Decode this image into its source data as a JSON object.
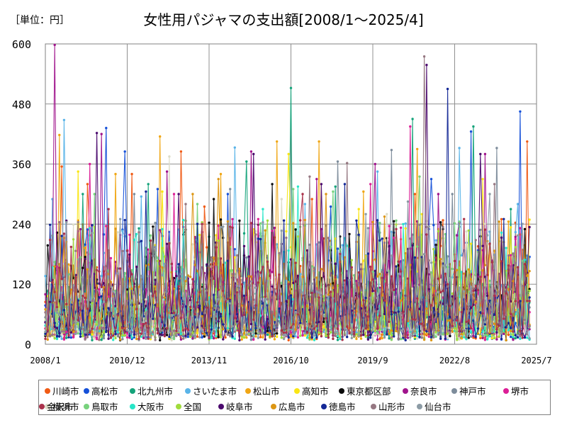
{
  "header": {
    "unit": "［単位：円］",
    "title": "女性用パジャマの支出額[2008/1～2025/4]"
  },
  "chart_data": {
    "type": "line",
    "title": "女性用パジャマの支出額[2008/1～2025/4]",
    "unit": "［単位：円］",
    "xlabel": "",
    "ylabel": "",
    "x_range": [
      "2008/1",
      "2025/7"
    ],
    "x_ticks": [
      "2008/1",
      "2010/12",
      "2013/11",
      "2016/10",
      "2019/9",
      "2022/8",
      "2025/7"
    ],
    "ylim": [
      0,
      600
    ],
    "y_ticks": [
      0,
      120,
      240,
      360,
      480,
      600
    ],
    "grid": true,
    "legend_position": "bottom",
    "series": [
      {
        "name": "川崎市",
        "color": "#f05a14",
        "peaks": [
          {
            "x": "2008/8",
            "y": 355
          },
          {
            "x": "2009/7",
            "y": 320
          },
          {
            "x": "2011/2",
            "y": 340
          },
          {
            "x": "2012/11",
            "y": 385
          },
          {
            "x": "2013/9",
            "y": 275
          },
          {
            "x": "2017/7",
            "y": 290
          },
          {
            "x": "2021/3",
            "y": 300
          },
          {
            "x": "2025/3",
            "y": 405
          }
        ]
      },
      {
        "name": "高松市",
        "color": "#1550d8",
        "peaks": [
          {
            "x": "2010/3",
            "y": 432
          },
          {
            "x": "2010/11",
            "y": 385
          },
          {
            "x": "2012/1",
            "y": 310
          },
          {
            "x": "2014/7",
            "y": 300
          },
          {
            "x": "2018/3",
            "y": 275
          },
          {
            "x": "2021/10",
            "y": 330
          },
          {
            "x": "2023/3",
            "y": 425
          },
          {
            "x": "2024/12",
            "y": 465
          }
        ]
      },
      {
        "name": "北九州市",
        "color": "#14a37a",
        "peaks": [
          {
            "x": "2009/5",
            "y": 300
          },
          {
            "x": "2011/9",
            "y": 320
          },
          {
            "x": "2015/3",
            "y": 365
          },
          {
            "x": "2016/10",
            "y": 512
          },
          {
            "x": "2018/5",
            "y": 315
          },
          {
            "x": "2021/2",
            "y": 450
          },
          {
            "x": "2023/4",
            "y": 435
          },
          {
            "x": "2024/8",
            "y": 270
          }
        ]
      },
      {
        "name": "さいたま市",
        "color": "#5ab4e8",
        "peaks": [
          {
            "x": "2008/4",
            "y": 290
          },
          {
            "x": "2008/9",
            "y": 448
          },
          {
            "x": "2011/6",
            "y": 295
          },
          {
            "x": "2014/10",
            "y": 393
          },
          {
            "x": "2017/4",
            "y": 280
          },
          {
            "x": "2019/11",
            "y": 345
          },
          {
            "x": "2022/10",
            "y": 392
          },
          {
            "x": "2024/11",
            "y": 280
          }
        ]
      },
      {
        "name": "松山市",
        "color": "#f0a614",
        "peaks": [
          {
            "x": "2008/7",
            "y": 418
          },
          {
            "x": "2010/7",
            "y": 340
          },
          {
            "x": "2012/2",
            "y": 415
          },
          {
            "x": "2014/4",
            "y": 340
          },
          {
            "x": "2016/4",
            "y": 405
          },
          {
            "x": "2017/10",
            "y": 405
          },
          {
            "x": "2019/5",
            "y": 305
          },
          {
            "x": "2021/4",
            "y": 390
          },
          {
            "x": "2024/7",
            "y": 245
          }
        ]
      },
      {
        "name": "高知市",
        "color": "#fae614",
        "peaks": [
          {
            "x": "2009/3",
            "y": 345
          },
          {
            "x": "2012/3",
            "y": 305
          },
          {
            "x": "2016/9",
            "y": 380
          },
          {
            "x": "2019/3",
            "y": 270
          },
          {
            "x": "2021/6",
            "y": 260
          },
          {
            "x": "2023/8",
            "y": 330
          }
        ]
      },
      {
        "name": "東京都区部",
        "color": "#0a0a0a",
        "peaks": [
          {
            "x": "2011/11",
            "y": 235
          },
          {
            "x": "2014/1",
            "y": 290
          },
          {
            "x": "2016/2",
            "y": 320
          },
          {
            "x": "2018/11",
            "y": 220
          },
          {
            "x": "2022/3",
            "y": 230
          },
          {
            "x": "2025/2",
            "y": 230
          }
        ]
      },
      {
        "name": "奈良市",
        "color": "#a0148c",
        "peaks": [
          {
            "x": "2008/5",
            "y": 598
          },
          {
            "x": "2010/1",
            "y": 420
          },
          {
            "x": "2012/5",
            "y": 345
          },
          {
            "x": "2015/5",
            "y": 385
          },
          {
            "x": "2017/9",
            "y": 330
          },
          {
            "x": "2019/10",
            "y": 360
          },
          {
            "x": "2022/1",
            "y": 300
          },
          {
            "x": "2023/9",
            "y": 380
          }
        ]
      },
      {
        "name": "神戸市",
        "color": "#7d8c9b",
        "peaks": [
          {
            "x": "2011/3",
            "y": 300
          },
          {
            "x": "2014/8",
            "y": 310
          },
          {
            "x": "2018/6",
            "y": 365
          },
          {
            "x": "2020/5",
            "y": 388
          },
          {
            "x": "2022/7",
            "y": 300
          },
          {
            "x": "2024/2",
            "y": 392
          }
        ]
      },
      {
        "name": "堺市",
        "color": "#dc1e96",
        "peaks": [
          {
            "x": "2009/8",
            "y": 360
          },
          {
            "x": "2012/8",
            "y": 300
          },
          {
            "x": "2015/8",
            "y": 250
          },
          {
            "x": "2019/8",
            "y": 320
          },
          {
            "x": "2021/1",
            "y": 435
          }
        ]
      },
      {
        "name": "横浜市",
        "color": "#dcdcc8",
        "peaks": [
          {
            "x": "2012/6",
            "y": 375
          },
          {
            "x": "2016/6",
            "y": 290
          },
          {
            "x": "2020/3",
            "y": 260
          }
        ]
      },
      {
        "name": "鳥取市",
        "color": "#78d27d",
        "peaks": [
          {
            "x": "2009/10",
            "y": 300
          },
          {
            "x": "2013/6",
            "y": 280
          },
          {
            "x": "2016/11",
            "y": 310
          },
          {
            "x": "2018/4",
            "y": 305
          },
          {
            "x": "2021/5",
            "y": 335
          }
        ]
      },
      {
        "name": "大阪市",
        "color": "#28e6c8",
        "peaks": [
          {
            "x": "2011/4",
            "y": 220
          },
          {
            "x": "2015/10",
            "y": 270
          },
          {
            "x": "2017/1",
            "y": 315
          },
          {
            "x": "2020/10",
            "y": 240
          }
        ]
      },
      {
        "name": "全国",
        "color": "#a0dc3c",
        "peaks": [
          {
            "x": "2012/4",
            "y": 175
          },
          {
            "x": "2016/5",
            "y": 180
          },
          {
            "x": "2021/11",
            "y": 190
          }
        ]
      },
      {
        "name": "岐阜市",
        "color": "#4b0a6e",
        "peaks": [
          {
            "x": "2009/11",
            "y": 422
          },
          {
            "x": "2012/10",
            "y": 300
          },
          {
            "x": "2015/6",
            "y": 380
          },
          {
            "x": "2017/11",
            "y": 320
          },
          {
            "x": "2021/8",
            "y": 558
          },
          {
            "x": "2023/7",
            "y": 380
          }
        ]
      },
      {
        "name": "広島市",
        "color": "#dc9614",
        "peaks": [
          {
            "x": "2013/4",
            "y": 300
          },
          {
            "x": "2014/3",
            "y": 330
          },
          {
            "x": "2018/1",
            "y": 300
          },
          {
            "x": "2020/2",
            "y": 255
          },
          {
            "x": "2024/3",
            "y": 245
          }
        ]
      },
      {
        "name": "徳島市",
        "color": "#142896",
        "peaks": [
          {
            "x": "2011/8",
            "y": 305
          },
          {
            "x": "2015/9",
            "y": 210
          },
          {
            "x": "2018/9",
            "y": 320
          },
          {
            "x": "2022/5",
            "y": 510
          },
          {
            "x": "2024/5",
            "y": 250
          }
        ]
      },
      {
        "name": "山形市",
        "color": "#967882",
        "peaks": [
          {
            "x": "2013/1",
            "y": 280
          },
          {
            "x": "2017/6",
            "y": 335
          },
          {
            "x": "2018/10",
            "y": 362
          },
          {
            "x": "2021/7",
            "y": 575
          },
          {
            "x": "2024/1",
            "y": 320
          }
        ]
      },
      {
        "name": "仙台市",
        "color": "#8c9ba5",
        "peaks": [
          {
            "x": "2010/9",
            "y": 250
          },
          {
            "x": "2014/5",
            "y": 235
          },
          {
            "x": "2019/6",
            "y": 260
          },
          {
            "x": "2020/12",
            "y": 285
          },
          {
            "x": "2023/11",
            "y": 300
          }
        ]
      },
      {
        "name": "金沢市",
        "color": "#aa324b",
        "peaks": [
          {
            "x": "2010/4",
            "y": 270
          },
          {
            "x": "2013/8",
            "y": 240
          },
          {
            "x": "2017/3",
            "y": 300
          },
          {
            "x": "2020/7",
            "y": 230
          },
          {
            "x": "2022/12",
            "y": 250
          }
        ]
      }
    ]
  }
}
